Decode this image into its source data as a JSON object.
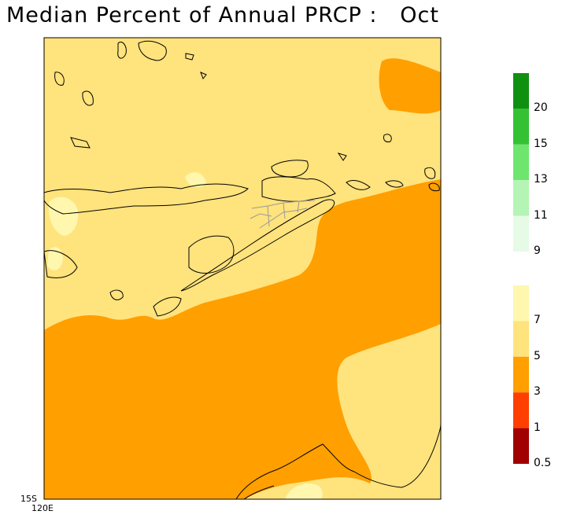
{
  "title": "Median Percent of Annual PRCP :   Oct",
  "axes": {
    "lat_label": "15S",
    "lon_label": "120E"
  },
  "legend_upper": [
    {
      "color": "#109010",
      "label": "20"
    },
    {
      "color": "#34c234",
      "label": "15"
    },
    {
      "color": "#6ee66e",
      "label": "13"
    },
    {
      "color": "#b4f4b4",
      "label": "11"
    },
    {
      "color": "#e6fbe6",
      "label": "9"
    }
  ],
  "legend_lower": [
    {
      "color": "#fff7ae",
      "label": "7"
    },
    {
      "color": "#ffe37d",
      "label": "5"
    },
    {
      "color": "#ff9f00",
      "label": "3"
    },
    {
      "color": "#ff3f00",
      "label": "1"
    },
    {
      "color": "#a00000",
      "label": "0.5"
    }
  ],
  "colors": {
    "light": "#fff7ae",
    "yellow": "#ffe37d",
    "orange": "#ff9f00"
  }
}
